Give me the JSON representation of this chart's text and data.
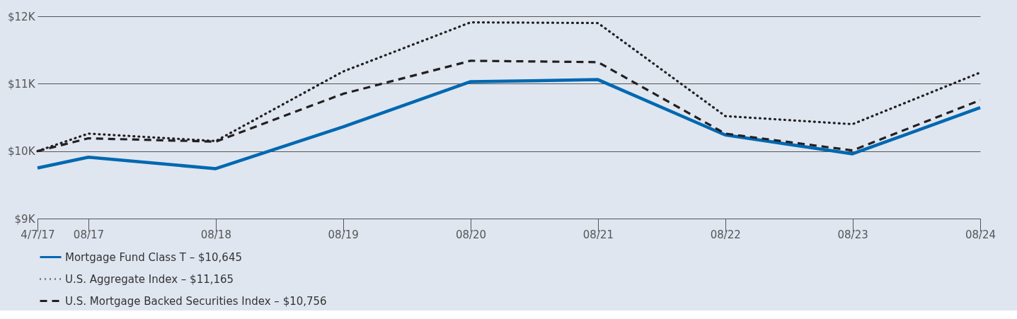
{
  "chart_data": {
    "type": "line",
    "x": [
      "2017-04-07",
      "2017-08-31",
      "2018-08-31",
      "2019-08-31",
      "2020-08-31",
      "2021-08-31",
      "2022-08-31",
      "2023-08-31",
      "2024-08-31"
    ],
    "series": [
      {
        "name": "Mortgage Fund Class T – $10,645",
        "color": "#0068b1",
        "line_style": "solid",
        "values": [
          9750,
          9910,
          9740,
          10360,
          11030,
          11060,
          10240,
          9960,
          10645
        ]
      },
      {
        "name": "U.S. Aggregate Index – $11,165",
        "color": "#231f20",
        "line_style": "dotted",
        "values": [
          10000,
          10260,
          10150,
          11180,
          11910,
          11900,
          10520,
          10400,
          11165
        ]
      },
      {
        "name": "U.S. Mortgage Backed Securities Index – $10,756",
        "color": "#231f20",
        "line_style": "dashed",
        "values": [
          10000,
          10190,
          10140,
          10850,
          11340,
          11320,
          10260,
          10010,
          10756
        ]
      }
    ],
    "xlim": [
      "2017-04-07",
      "2024-08-31"
    ],
    "xticks": [
      {
        "value": "2017-04-07",
        "label": "4/7/17"
      },
      {
        "value": "2017-08-31",
        "label": "08/17"
      },
      {
        "value": "2018-08-31",
        "label": "08/18"
      },
      {
        "value": "2019-08-31",
        "label": "08/19"
      },
      {
        "value": "2020-08-31",
        "label": "08/20"
      },
      {
        "value": "2021-08-31",
        "label": "08/21"
      },
      {
        "value": "2022-08-31",
        "label": "08/22"
      },
      {
        "value": "2023-08-31",
        "label": "08/23"
      },
      {
        "value": "2024-08-31",
        "label": "08/24"
      }
    ],
    "ylim": [
      9000,
      12000
    ],
    "yticks": [
      {
        "value": 9000,
        "label": "$9K"
      },
      {
        "value": 10000,
        "label": "$10K"
      },
      {
        "value": 11000,
        "label": "$11K"
      },
      {
        "value": 12000,
        "label": "$12K"
      }
    ],
    "grid": "y",
    "legend": "bottom left",
    "marker": "none"
  }
}
